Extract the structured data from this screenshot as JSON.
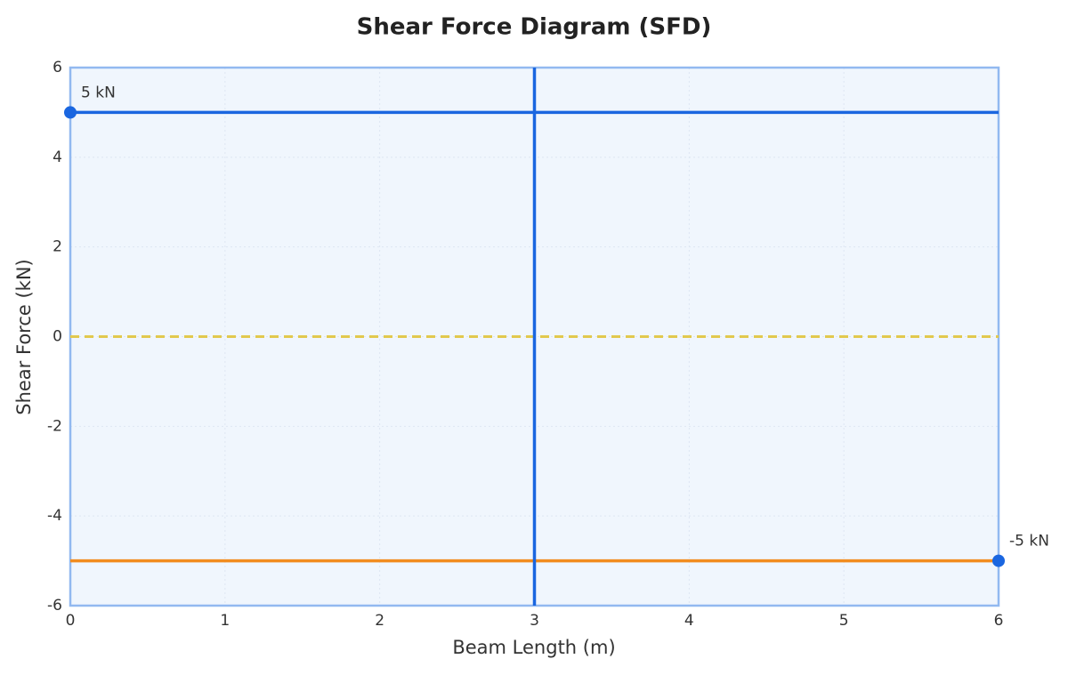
{
  "chart_data": {
    "type": "line",
    "title": "Shear Force Diagram (SFD)",
    "xlabel": "Beam Length (m)",
    "ylabel": "Shear Force (kN)",
    "xlim": [
      0,
      6
    ],
    "ylim": [
      -6,
      6
    ],
    "xticks": [
      0,
      1,
      2,
      3,
      4,
      5,
      6
    ],
    "yticks": [
      -6,
      -4,
      -2,
      0,
      2,
      4,
      6
    ],
    "grid": true,
    "series": [
      {
        "color": "#1a66e0",
        "x": [
          0,
          6
        ],
        "values": [
          5,
          5
        ]
      },
      {
        "color": "#f28c1e",
        "x": [
          0,
          6
        ],
        "values": [
          -5,
          -5
        ]
      }
    ],
    "vlines": [
      {
        "x": 3,
        "color": "#1a66e0"
      }
    ],
    "hlines": [
      {
        "y": 0,
        "color": "#e2c94e",
        "dashed": true
      }
    ],
    "points": [
      {
        "x": 0,
        "y": 5,
        "label": "5 kN",
        "color": "#1a66e0"
      },
      {
        "x": 6,
        "y": -5,
        "label": "-5 kN",
        "color": "#1a66e0"
      }
    ]
  }
}
